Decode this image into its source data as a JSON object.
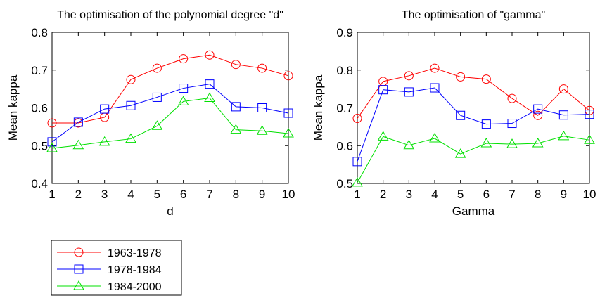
{
  "chart_data": [
    {
      "type": "line",
      "title": "The optimisation of the polynomial degree \"d\"",
      "xlabel": "d",
      "ylabel": "Mean kappa",
      "x": [
        1,
        2,
        3,
        4,
        5,
        6,
        7,
        8,
        9,
        10
      ],
      "xlim": [
        1,
        10
      ],
      "ylim": [
        0.4,
        0.8
      ],
      "yticks": [
        "0.4",
        "0.5",
        "0.6",
        "0.7",
        "0.8"
      ],
      "xticks": [
        "1",
        "2",
        "3",
        "4",
        "5",
        "6",
        "7",
        "8",
        "9",
        "10"
      ],
      "grid": false,
      "series": [
        {
          "name": "1963-1978",
          "color": "#ff0000",
          "marker": "circle",
          "values": [
            0.56,
            0.56,
            0.575,
            0.675,
            0.705,
            0.73,
            0.74,
            0.715,
            0.705,
            0.685
          ]
        },
        {
          "name": "1978-1984",
          "color": "#0000ff",
          "marker": "square",
          "values": [
            0.51,
            0.562,
            0.597,
            0.606,
            0.628,
            0.652,
            0.663,
            0.603,
            0.6,
            0.586
          ]
        },
        {
          "name": "1984-2000",
          "color": "#00e000",
          "marker": "triangle",
          "values": [
            0.493,
            0.501,
            0.51,
            0.518,
            0.552,
            0.617,
            0.626,
            0.542,
            0.539,
            0.532
          ]
        }
      ]
    },
    {
      "type": "line",
      "title": "The optimisation of \"gamma\"",
      "xlabel": "Gamma",
      "ylabel": "Mean kappa",
      "x": [
        1,
        2,
        3,
        4,
        5,
        6,
        7,
        8,
        9,
        10
      ],
      "xlim": [
        1,
        10
      ],
      "ylim": [
        0.5,
        0.9
      ],
      "yticks": [
        "0.5",
        "0.6",
        "0.7",
        "0.8",
        "0.9"
      ],
      "xticks": [
        "1",
        "2",
        "3",
        "4",
        "5",
        "6",
        "7",
        "8",
        "9",
        "10"
      ],
      "grid": false,
      "series": [
        {
          "name": "1963-1978",
          "color": "#ff0000",
          "marker": "circle",
          "values": [
            0.672,
            0.77,
            0.785,
            0.805,
            0.782,
            0.776,
            0.725,
            0.68,
            0.75,
            0.693
          ]
        },
        {
          "name": "1978-1984",
          "color": "#0000ff",
          "marker": "square",
          "values": [
            0.558,
            0.748,
            0.742,
            0.753,
            0.68,
            0.657,
            0.659,
            0.697,
            0.681,
            0.683
          ]
        },
        {
          "name": "1984-2000",
          "color": "#00e000",
          "marker": "triangle",
          "values": [
            0.502,
            0.624,
            0.601,
            0.619,
            0.578,
            0.606,
            0.604,
            0.606,
            0.625,
            0.615
          ]
        }
      ]
    }
  ],
  "legend": {
    "position": "bottom-left",
    "entries": [
      {
        "label": "1963-1978",
        "color": "#ff0000",
        "marker": "circle"
      },
      {
        "label": "1978-1984",
        "color": "#0000ff",
        "marker": "square"
      },
      {
        "label": "1984-2000",
        "color": "#00e000",
        "marker": "triangle"
      }
    ]
  }
}
